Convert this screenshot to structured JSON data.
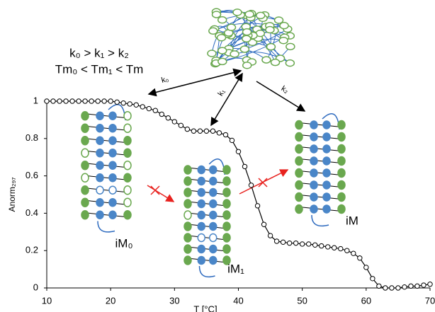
{
  "chart_data": {
    "type": "line",
    "xlabel": "T [°C]",
    "ylabel": "Anorm₂₉₇",
    "x": [
      10,
      11,
      12,
      13,
      14,
      15,
      16,
      17,
      18,
      19,
      20,
      21,
      22,
      23,
      24,
      25,
      26,
      27,
      28,
      29,
      30,
      31,
      32,
      33,
      34,
      35,
      36,
      37,
      38,
      39,
      40,
      41,
      42,
      43,
      44,
      45,
      46,
      47,
      48,
      49,
      50,
      51,
      52,
      53,
      54,
      55,
      56,
      57,
      58,
      59,
      60,
      61,
      62,
      63,
      64,
      65,
      66,
      67,
      68,
      69,
      70
    ],
    "series": [
      {
        "color": "#000000",
        "values": [
          1,
          1,
          1,
          1,
          1,
          1,
          1,
          1,
          1,
          1,
          1,
          0.995,
          0.99,
          0.985,
          0.98,
          0.97,
          0.96,
          0.95,
          0.93,
          0.91,
          0.89,
          0.87,
          0.85,
          0.84,
          0.84,
          0.84,
          0.84,
          0.83,
          0.82,
          0.79,
          0.73,
          0.65,
          0.55,
          0.44,
          0.34,
          0.28,
          0.25,
          0.245,
          0.24,
          0.24,
          0.235,
          0.235,
          0.23,
          0.225,
          0.22,
          0.215,
          0.21,
          0.2,
          0.185,
          0.16,
          0.11,
          0.05,
          0.01,
          0,
          0,
          0,
          0.005,
          0.01,
          0.01,
          0.015,
          0.02
        ]
      }
    ],
    "xlim": [
      10,
      70
    ],
    "xticks": [
      10,
      20,
      30,
      40,
      50,
      60,
      70
    ],
    "ylim": [
      0,
      1
    ],
    "yticks": [
      0,
      0.2,
      0.4,
      0.6,
      0.8,
      1
    ],
    "annotations": {
      "rates": "k₀ > k₁ > k₂",
      "tms": "Tm₀ < Tm₁ < Tm",
      "k0": "k₀",
      "k1": "k₁",
      "k2": "k₂",
      "im0": "iM₀",
      "im1": "iM₁",
      "im": "iM"
    }
  }
}
